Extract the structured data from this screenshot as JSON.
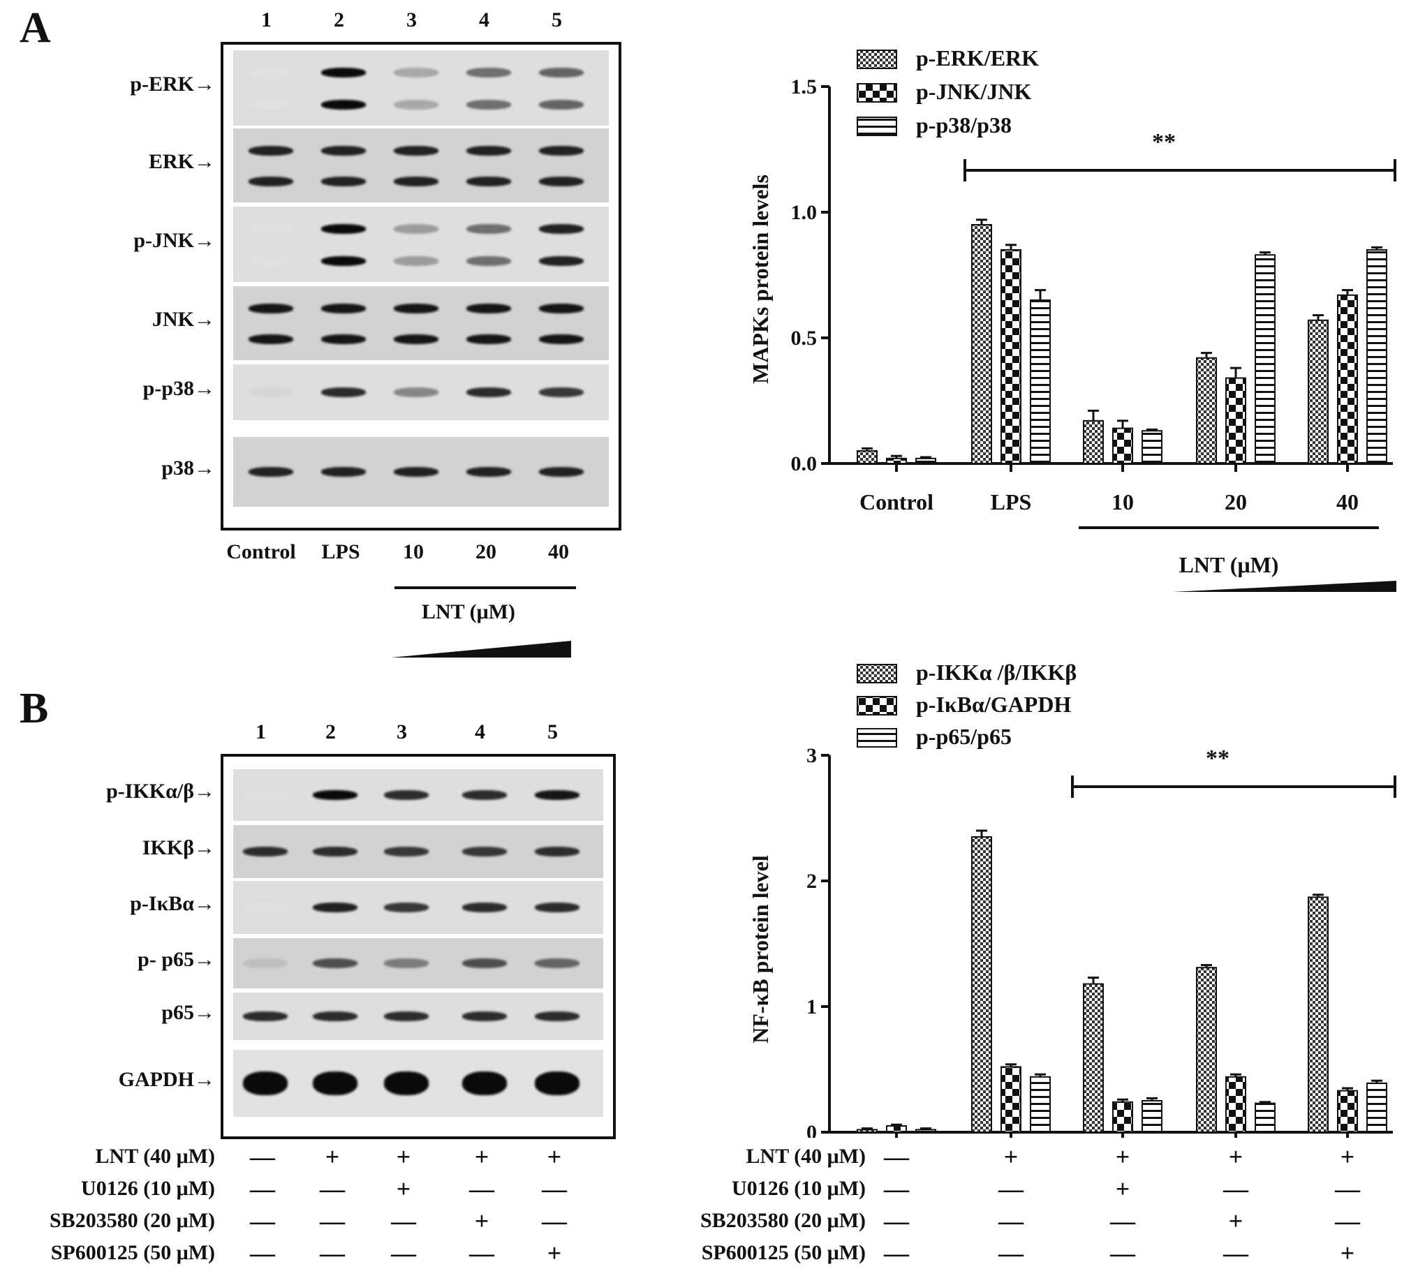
{
  "panelA": {
    "letter": "A",
    "lanes": [
      "1",
      "2",
      "3",
      "4",
      "5"
    ],
    "rows": [
      {
        "label": "p-ERK→",
        "kind": "double",
        "intensity": [
          0.05,
          1.0,
          0.3,
          0.55,
          0.6
        ]
      },
      {
        "label": "ERK→",
        "kind": "double",
        "intensity": [
          0.9,
          0.9,
          0.9,
          0.9,
          0.9
        ]
      },
      {
        "label": "p-JNK→",
        "kind": "double",
        "intensity": [
          0.05,
          1.0,
          0.35,
          0.55,
          0.9
        ]
      },
      {
        "label": "JNK→",
        "kind": "double",
        "intensity": [
          0.95,
          0.95,
          0.95,
          0.95,
          0.95
        ]
      },
      {
        "label": "p-p38→",
        "kind": "single",
        "intensity": [
          0.1,
          0.85,
          0.45,
          0.85,
          0.8
        ]
      },
      {
        "label": "p38→",
        "kind": "single",
        "intensity": [
          0.9,
          0.9,
          0.9,
          0.9,
          0.9
        ]
      }
    ],
    "conditions": [
      "Control",
      "LPS",
      "10",
      "20",
      "40"
    ],
    "lnt_label": "LNT (μM)"
  },
  "panelB": {
    "letter": "B",
    "lanes": [
      "1",
      "2",
      "3",
      "4",
      "5"
    ],
    "rows": [
      {
        "label": "p-IKKα/β→",
        "kind": "single",
        "intensity": [
          0.05,
          1.0,
          0.85,
          0.85,
          0.95
        ]
      },
      {
        "label": "IKKβ→",
        "kind": "single",
        "intensity": [
          0.85,
          0.85,
          0.8,
          0.8,
          0.85
        ]
      },
      {
        "label": "p-IκBα→",
        "kind": "single",
        "intensity": [
          0.05,
          0.9,
          0.8,
          0.85,
          0.85
        ]
      },
      {
        "label": "p- p65→",
        "kind": "single",
        "intensity": [
          0.2,
          0.7,
          0.5,
          0.7,
          0.6
        ]
      },
      {
        "label": "p65→",
        "kind": "single",
        "intensity": [
          0.85,
          0.85,
          0.85,
          0.85,
          0.85
        ]
      },
      {
        "label": "GAPDH→",
        "kind": "thick",
        "intensity": [
          1,
          1,
          1,
          1,
          1
        ]
      }
    ],
    "treatments": [
      {
        "label": "LNT (40 μM)",
        "signs": [
          "—",
          "+",
          "+",
          "+",
          "+"
        ]
      },
      {
        "label": "U0126 (10 μM)",
        "signs": [
          "—",
          "—",
          "+",
          "—",
          "—"
        ]
      },
      {
        "label": "SB203580 (20 μM)",
        "signs": [
          "—",
          "—",
          "—",
          "+",
          "—"
        ]
      },
      {
        "label": "SP600125 (50 μM)",
        "signs": [
          "—",
          "—",
          "—",
          "—",
          "+"
        ]
      }
    ]
  },
  "chart_data": [
    {
      "type": "bar",
      "ylabel": "MAPKs protein levels",
      "ylim": [
        0,
        1.5
      ],
      "yticks": [
        "0.0",
        "0.5",
        "1.0",
        "1.5"
      ],
      "categories": [
        "Control",
        "LPS",
        "10",
        "20",
        "40"
      ],
      "group_label": "LNT (μM)",
      "significance": "**",
      "series": [
        {
          "name": "p-ERK/ERK",
          "pattern": "dots",
          "values": [
            0.05,
            0.95,
            0.17,
            0.42,
            0.57
          ],
          "errors": [
            0.01,
            0.02,
            0.04,
            0.02,
            0.02
          ]
        },
        {
          "name": "p-JNK/JNK",
          "pattern": "checker",
          "values": [
            0.02,
            0.85,
            0.14,
            0.34,
            0.67
          ],
          "errors": [
            0.01,
            0.02,
            0.03,
            0.04,
            0.02
          ]
        },
        {
          "name": "p-p38/p38",
          "pattern": "hlines",
          "values": [
            0.02,
            0.65,
            0.13,
            0.83,
            0.85
          ],
          "errors": [
            0.005,
            0.04,
            0.005,
            0.01,
            0.01
          ]
        }
      ]
    },
    {
      "type": "bar",
      "ylabel": "NF-κB protein level",
      "ylim": [
        0,
        3
      ],
      "yticks": [
        "0",
        "1",
        "2",
        "3"
      ],
      "categories": [
        "1",
        "2",
        "3",
        "4",
        "5"
      ],
      "significance": "**",
      "series": [
        {
          "name": "p-IKKα /β/IKKβ",
          "pattern": "dots",
          "values": [
            0.02,
            2.35,
            1.18,
            1.31,
            1.87
          ],
          "errors": [
            0.01,
            0.05,
            0.05,
            0.02,
            0.02
          ]
        },
        {
          "name": "p-IκBα/GAPDH",
          "pattern": "checker",
          "values": [
            0.05,
            0.52,
            0.24,
            0.44,
            0.33
          ],
          "errors": [
            0.01,
            0.02,
            0.02,
            0.02,
            0.02
          ]
        },
        {
          "name": "p-p65/p65",
          "pattern": "hlines",
          "values": [
            0.02,
            0.44,
            0.25,
            0.23,
            0.39
          ],
          "errors": [
            0.01,
            0.02,
            0.02,
            0.01,
            0.02
          ]
        }
      ],
      "treatments": [
        {
          "label": "LNT (40 μM)",
          "signs": [
            "—",
            "+",
            "+",
            "+",
            "+"
          ]
        },
        {
          "label": "U0126 (10 μM)",
          "signs": [
            "—",
            "—",
            "+",
            "—",
            "—"
          ]
        },
        {
          "label": "SB203580 (20 μM)",
          "signs": [
            "—",
            "—",
            "—",
            "+",
            "—"
          ]
        },
        {
          "label": "SP600125 (50 μM)",
          "signs": [
            "—",
            "—",
            "—",
            "—",
            "+"
          ]
        }
      ]
    }
  ]
}
